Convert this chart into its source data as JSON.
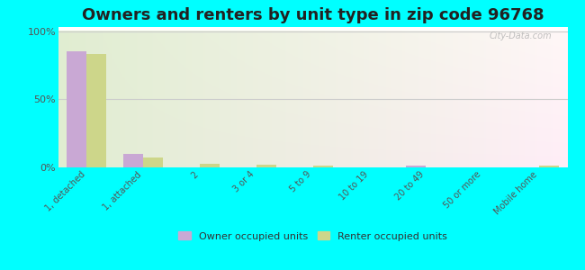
{
  "title": "Owners and renters by unit type in zip code 96768",
  "categories": [
    "1, detached",
    "1, attached",
    "2",
    "3 or 4",
    "5 to 9",
    "10 to 19",
    "20 to 49",
    "50 or more",
    "Mobile home"
  ],
  "owner_values": [
    85,
    10,
    0.3,
    0.3,
    0.3,
    0.3,
    1.0,
    0.3,
    0.3
  ],
  "renter_values": [
    83,
    7,
    2.5,
    2.0,
    1.5,
    0.3,
    0.3,
    0.3,
    1.5
  ],
  "owner_color": "#c9a8d4",
  "renter_color": "#cdd68a",
  "background_outer": "#00ffff",
  "ylim": [
    0,
    100
  ],
  "yticks": [
    0,
    50,
    100
  ],
  "ytick_labels": [
    "0%",
    "50%",
    "100%"
  ],
  "title_fontsize": 13,
  "legend_labels": [
    "Owner occupied units",
    "Renter occupied units"
  ],
  "watermark": "City-Data.com"
}
